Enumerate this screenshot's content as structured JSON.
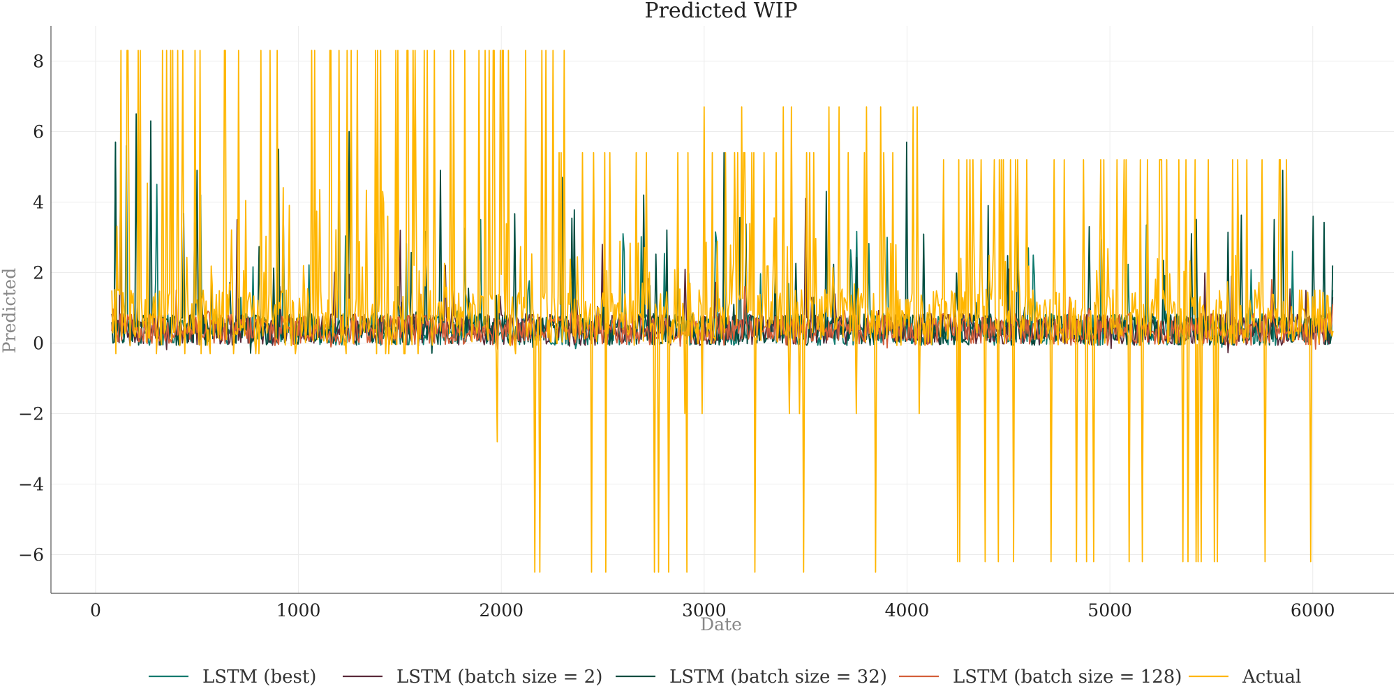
{
  "chart_data": {
    "type": "line",
    "title": "Predicted WIP",
    "xlabel": "Date",
    "ylabel": "Predicted",
    "xlim": [
      -220,
      6400
    ],
    "ylim": [
      -7.1,
      9.0
    ],
    "xticks": [
      0,
      1000,
      2000,
      3000,
      4000,
      5000,
      6000
    ],
    "xtick_labels": [
      "0",
      "1000",
      "2000",
      "3000",
      "4000",
      "5000",
      "6000"
    ],
    "yticks": [
      -6,
      -4,
      -2,
      0,
      2,
      4,
      6,
      8
    ],
    "ytick_labels": [
      "−6",
      "−4",
      "−2",
      "0",
      "2",
      "4",
      "6",
      "8"
    ],
    "grid": true,
    "legend_position": "bottom",
    "x_range": [
      80,
      6100
    ],
    "series": [
      {
        "name": "LSTM (best)",
        "color": "#0e7a6e",
        "approx_range": [
          -0.2,
          5.8
        ],
        "spikes": [
          [
            96,
            5.7
          ],
          [
            150,
            5.6
          ],
          [
            300,
            4.5
          ],
          [
            520,
            4.2
          ],
          [
            1200,
            4.6
          ],
          [
            1900,
            3.5
          ],
          [
            2600,
            3.1
          ],
          [
            3100,
            3.3
          ],
          [
            3900,
            3.0
          ],
          [
            4600,
            2.7
          ],
          [
            5400,
            2.5
          ],
          [
            5900,
            2.6
          ],
          [
            6100,
            1.5
          ]
        ]
      },
      {
        "name": "LSTM (batch size = 2)",
        "color": "#5a2a3a",
        "approx_range": [
          -0.35,
          4.1
        ],
        "spikes": [
          [
            120,
            3.8
          ],
          [
            700,
            3.5
          ],
          [
            1500,
            3.2
          ],
          [
            2500,
            2.8
          ],
          [
            3500,
            4.1
          ],
          [
            4500,
            2.1
          ],
          [
            5600,
            1.9
          ],
          [
            6100,
            1.3
          ]
        ]
      },
      {
        "name": "LSTM (batch size = 32)",
        "color": "#004d40",
        "approx_range": [
          -0.3,
          6.5
        ],
        "spikes": [
          [
            96,
            5.7
          ],
          [
            200,
            6.5
          ],
          [
            270,
            6.3
          ],
          [
            500,
            4.9
          ],
          [
            900,
            5.5
          ],
          [
            1250,
            6.0
          ],
          [
            1700,
            4.9
          ],
          [
            2300,
            4.7
          ],
          [
            2700,
            4.2
          ],
          [
            3100,
            5.4
          ],
          [
            3600,
            4.3
          ],
          [
            4000,
            5.7
          ],
          [
            4400,
            3.9
          ],
          [
            4900,
            3.3
          ],
          [
            5400,
            3.1
          ],
          [
            5850,
            4.9
          ],
          [
            6000,
            3.6
          ],
          [
            6100,
            2.2
          ]
        ]
      },
      {
        "name": "LSTM (batch size = 128)",
        "color": "#d45f3a",
        "approx_range": [
          -0.2,
          1.8
        ],
        "spikes": [
          [
            400,
            1.5
          ],
          [
            1600,
            1.4
          ],
          [
            3200,
            1.6
          ],
          [
            4800,
            1.3
          ],
          [
            5800,
            1.8
          ],
          [
            6100,
            1.1
          ]
        ]
      },
      {
        "name": "Actual",
        "color": "#ffb600",
        "levels": [
          {
            "x": [
              80,
              2330
            ],
            "high": 8.3,
            "low": -0.3
          },
          {
            "x": [
              1960,
              1980
            ],
            "high": 0.2,
            "low": -2.8
          },
          {
            "x": [
              2050,
              4000
            ],
            "high": 5.4,
            "low": -6.5
          },
          {
            "x": [
              2900,
              4060
            ],
            "high": 6.7,
            "low": -2.0
          },
          {
            "x": [
              4150,
              5900
            ],
            "high": 5.2,
            "low": -6.2
          },
          {
            "x": [
              5900,
              6100
            ],
            "high": 1.5,
            "low": -6.2
          }
        ]
      }
    ]
  }
}
